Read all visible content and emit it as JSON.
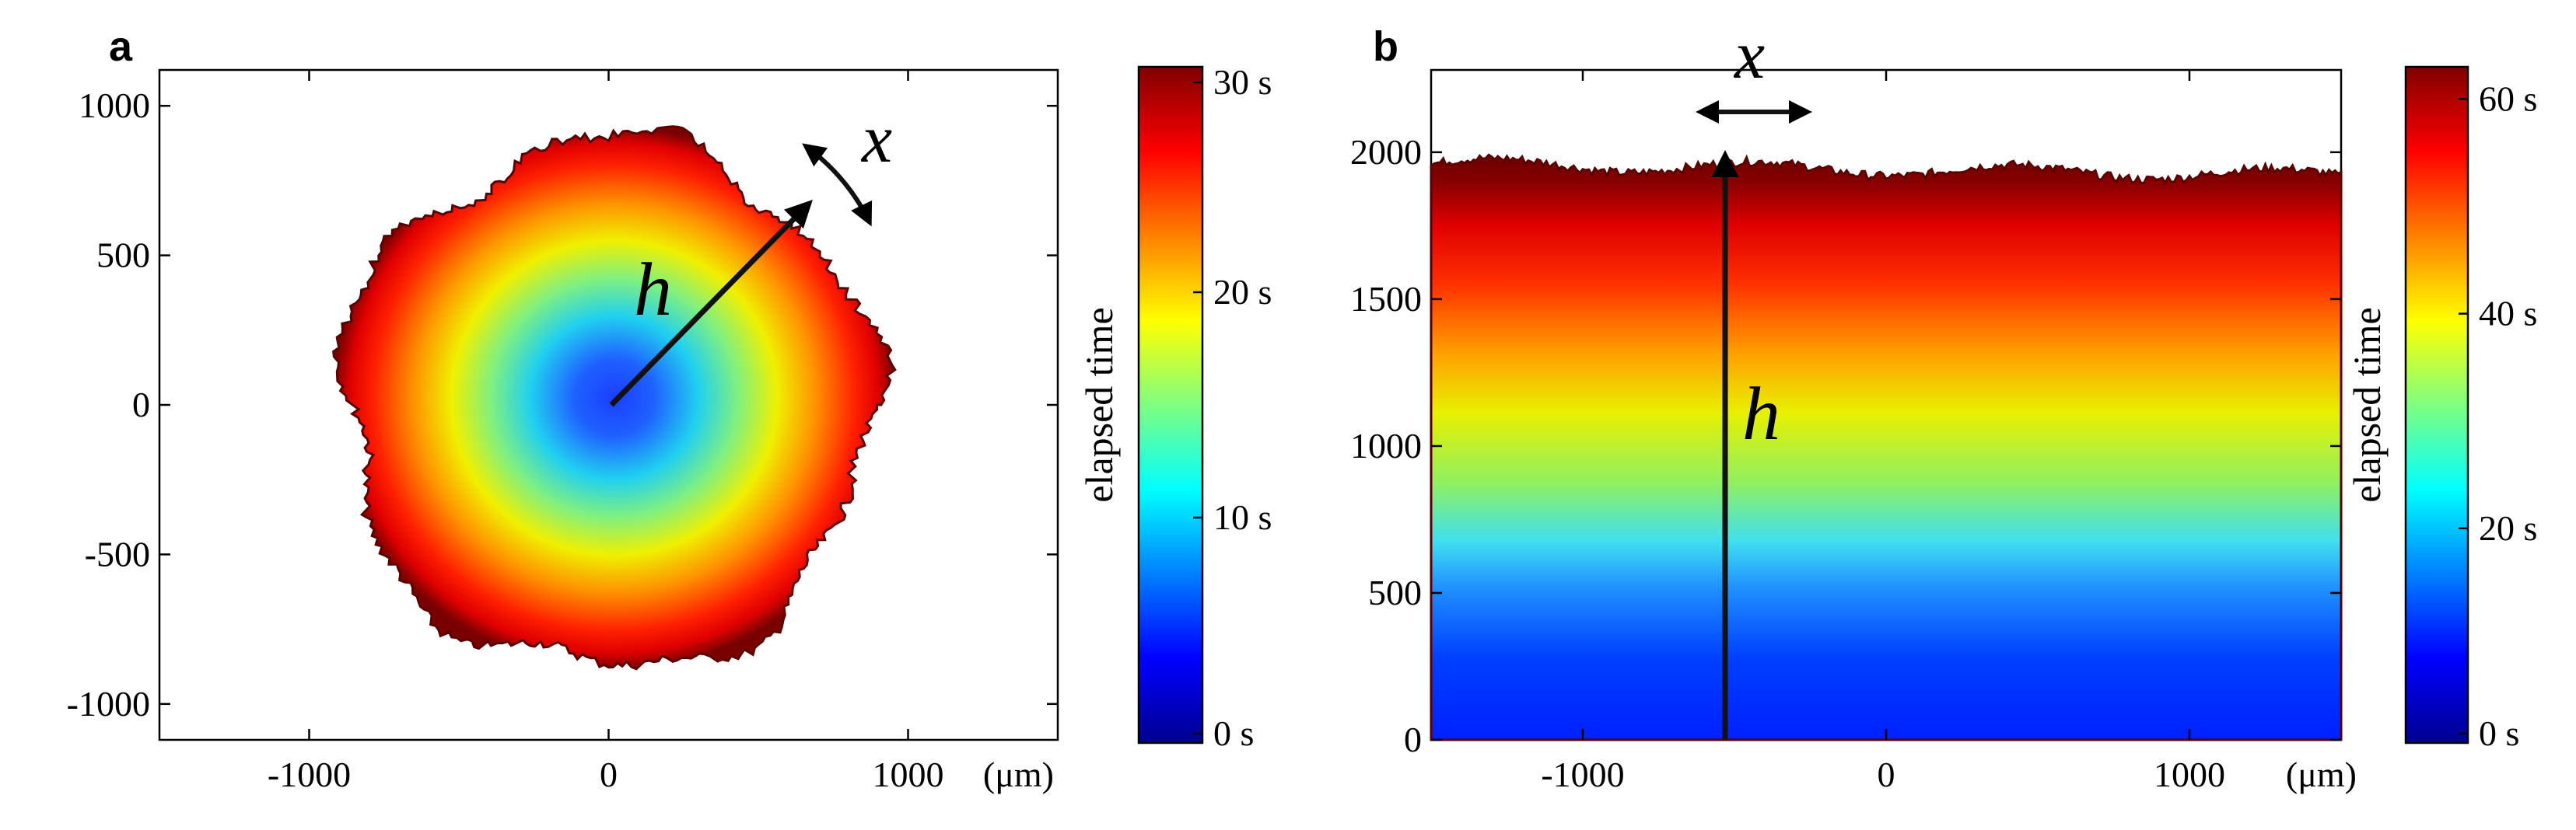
{
  "colormap": [
    "#00008f",
    "#0000ff",
    "#0080ff",
    "#00ffff",
    "#80ff80",
    "#ffff00",
    "#ff8000",
    "#ff0000",
    "#800000"
  ],
  "chart_data": [
    {
      "type": "heatmap",
      "panel": "a",
      "description_units": "μm",
      "x_ticks": [
        "-1000",
        "0",
        "1000"
      ],
      "x_tick_values": [
        -1000,
        0,
        1000
      ],
      "x_unit": "(μm)",
      "y_ticks": [
        "1000",
        "500",
        "0",
        "-500",
        "-1000"
      ],
      "y_tick_values": [
        1000,
        500,
        0,
        -500,
        -1000
      ],
      "xlim": [
        -1500,
        1500
      ],
      "ylim": [
        -1120,
        1120
      ],
      "colorbar": {
        "label": "elapsed time",
        "ticks": [
          "30 s",
          "20 s",
          "10 s",
          "0 s"
        ],
        "tick_values": [
          30,
          20,
          10,
          0
        ],
        "range": [
          0,
          30
        ]
      },
      "annotations": {
        "radial_var": "h",
        "lateral_var": "x"
      },
      "front_max_radius_um": 950
    },
    {
      "type": "heatmap",
      "panel": "b",
      "x_ticks": [
        "-1000",
        "0",
        "1000"
      ],
      "x_tick_values": [
        -1000,
        0,
        1000
      ],
      "x_unit": "(μm)",
      "y_ticks": [
        "2000",
        "1500",
        "1000",
        "500",
        "0"
      ],
      "y_tick_values": [
        2000,
        1500,
        1000,
        500,
        0
      ],
      "xlim": [
        -1500,
        1500
      ],
      "ylim": [
        0,
        2280
      ],
      "colorbar": {
        "label": "elapsed time",
        "ticks": [
          "60 s",
          "40 s",
          "20 s",
          "0 s"
        ],
        "tick_values": [
          60,
          40,
          20,
          0
        ],
        "range": [
          0,
          63
        ]
      },
      "annotations": {
        "height_var": "h",
        "lateral_var": "x"
      },
      "front_height_um": 1960
    }
  ]
}
